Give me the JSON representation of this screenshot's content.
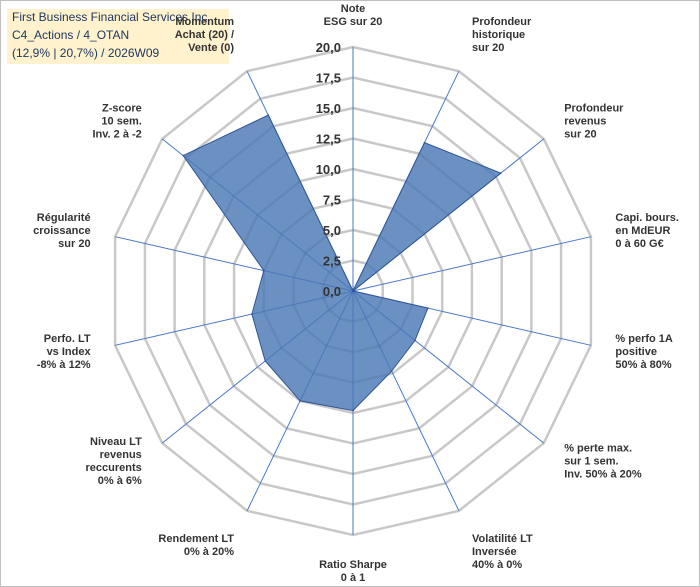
{
  "title": {
    "line1": "First Business Financial Services Inc",
    "line2": "C4_Actions / 4_OTAN",
    "line3": "(12,9% | 20,7%) / 2026W09"
  },
  "chart_data": {
    "type": "radar",
    "rmin": 0,
    "rmax": 20,
    "ticks": [
      "0,0",
      "2,5",
      "5,0",
      "7,5",
      "10,0",
      "12,5",
      "15,0",
      "17,5",
      "20,0"
    ],
    "tick_values": [
      0,
      2.5,
      5,
      7.5,
      10,
      12.5,
      15,
      17.5,
      20
    ],
    "series_color": "#4a78b5",
    "axes": [
      {
        "label": [
          "Note",
          "ESG sur 20"
        ],
        "value": 0
      },
      {
        "label": [
          "Profondeur",
          "historique",
          "sur 20"
        ],
        "value": 13.5
      },
      {
        "label": [
          "Profondeur",
          "revenus",
          "sur 20"
        ],
        "value": 15.5
      },
      {
        "label": [
          "Capi. bours.",
          "en MdEUR",
          "0 à 60 G€"
        ],
        "value": 0
      },
      {
        "label": [
          "% perfo 1A",
          "positive",
          "50% à 80%"
        ],
        "value": 6.3
      },
      {
        "label": [
          "% perte max.",
          "sur 1 sem.",
          "Inv. 50% à 20%"
        ],
        "value": 6.5
      },
      {
        "label": [
          "Volatilité LT",
          "Inversée",
          "40% à 0%"
        ],
        "value": 7.3
      },
      {
        "label": [
          "Ratio Sharpe",
          "0 à 1"
        ],
        "value": 9.8
      },
      {
        "label": [
          "Rendement LT",
          "0% à 20%"
        ],
        "value": 10
      },
      {
        "label": [
          "Niveau LT",
          "revenus",
          "reccurents",
          "0% à 6%"
        ],
        "value": 9.2
      },
      {
        "label": [
          "Perfo. LT",
          "vs Index",
          "-8% à 12%"
        ],
        "value": 8.5
      },
      {
        "label": [
          "Régularité",
          "croissance",
          "sur 20"
        ],
        "value": 7.5
      },
      {
        "label": [
          "Z-score",
          "10 sem.",
          "Inv. 2 à -2"
        ],
        "value": 17.8
      },
      {
        "label": [
          "Momentum",
          "Achat (20) /",
          "Vente (0)"
        ],
        "value": 16
      }
    ]
  }
}
